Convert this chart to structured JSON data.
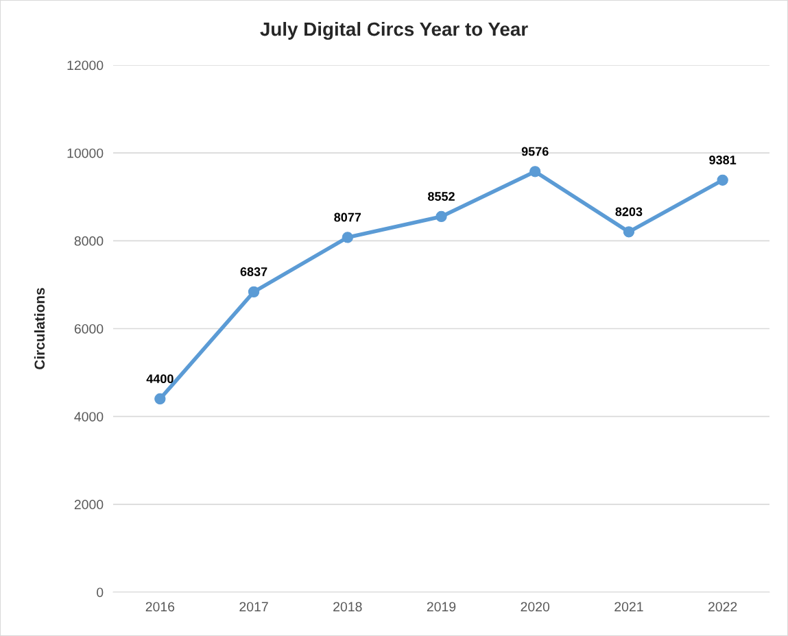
{
  "chart_data": {
    "type": "line",
    "title": "July Digital Circs Year to Year",
    "ylabel": "Circulations",
    "categories": [
      "2016",
      "2017",
      "2018",
      "2019",
      "2020",
      "2021",
      "2022"
    ],
    "series": [
      {
        "color": "#5b9bd5",
        "values": [
          4400,
          6837,
          8077,
          8552,
          9576,
          8203,
          9381
        ]
      }
    ],
    "ylim": [
      0,
      12000
    ],
    "yticks": [
      0,
      2000,
      4000,
      6000,
      8000,
      10000,
      12000
    ],
    "grid": "y",
    "marker": "circle",
    "line_style": "solid",
    "data_labels": true
  }
}
